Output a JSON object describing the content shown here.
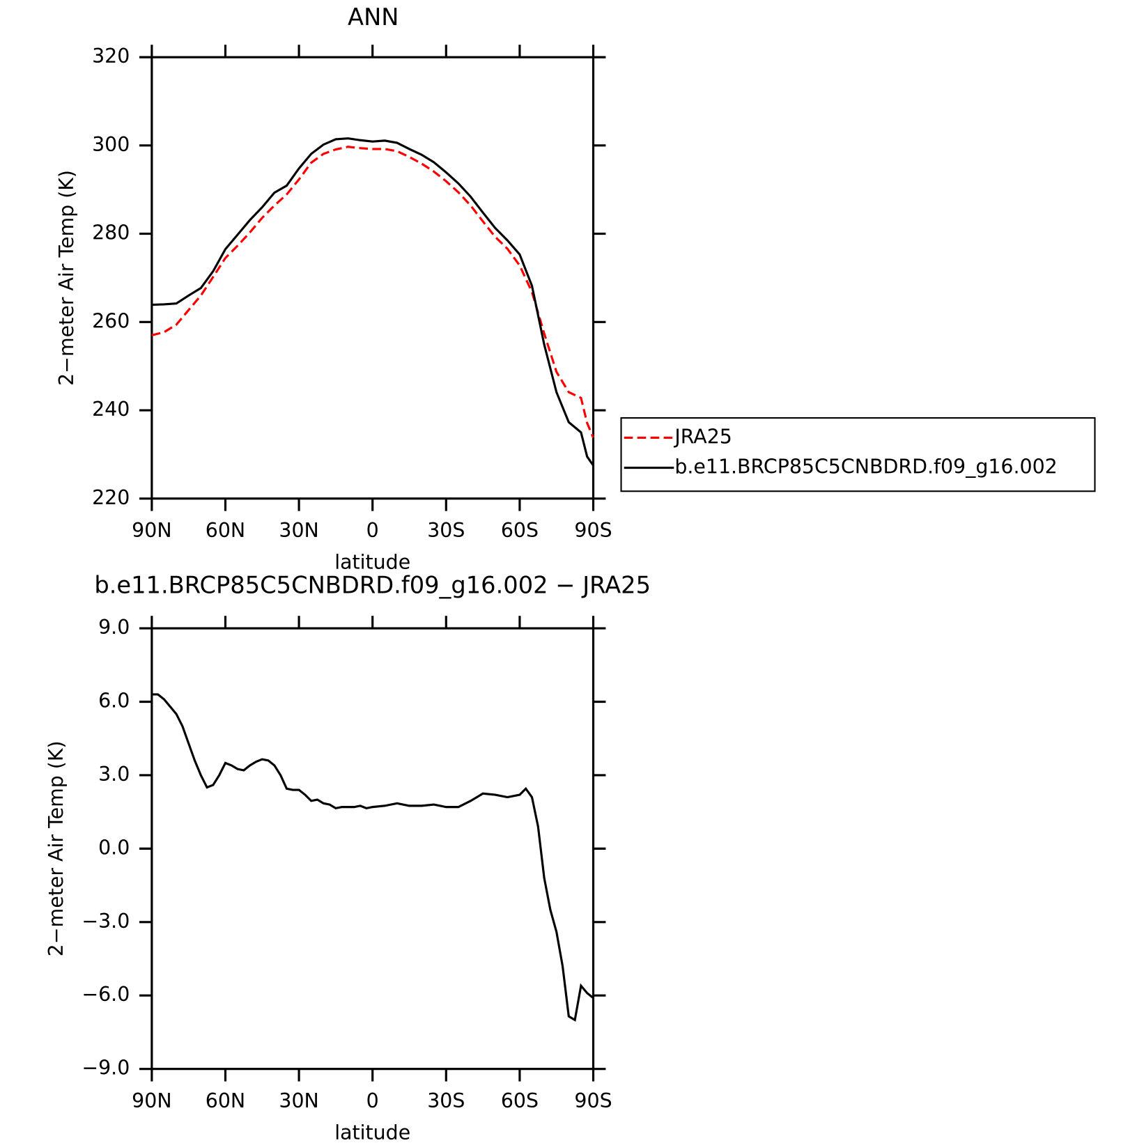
{
  "chart_data": [
    {
      "type": "line",
      "title": "ANN",
      "xlabel": "latitude",
      "ylabel": "2−meter Air Temp (K)",
      "x": [
        90,
        85,
        80,
        75,
        70,
        65,
        60,
        55,
        50,
        45,
        40,
        35,
        30,
        25,
        20,
        15,
        10,
        5,
        0,
        -5,
        -10,
        -15,
        -20,
        -25,
        -30,
        -35,
        -40,
        -45,
        -50,
        -55,
        -60,
        -65,
        -70,
        -75,
        -80,
        -85,
        -87.5,
        -90
      ],
      "series": [
        {
          "name": "JRA25",
          "color": "#ff0000",
          "dash": true,
          "values": [
            257.0,
            257.7,
            259.4,
            262.7,
            266.0,
            270.2,
            274.5,
            277.3,
            280.3,
            283.6,
            286.4,
            288.9,
            292.3,
            296.1,
            298.1,
            299.1,
            299.7,
            299.4,
            299.2,
            299.2,
            298.7,
            297.4,
            295.9,
            294.1,
            291.9,
            289.4,
            286.4,
            282.8,
            279.3,
            276.6,
            272.8,
            266.8,
            257.4,
            248.7,
            244.1,
            242.8,
            237.1,
            233.8
          ]
        },
        {
          "name": "b.e11.BRCP85C5CNBDRD.f09_g16.002",
          "color": "#000000",
          "dash": false,
          "values": [
            263.9,
            264.0,
            264.2,
            266.0,
            267.7,
            271.5,
            276.5,
            279.8,
            283.1,
            286.0,
            289.3,
            290.9,
            294.8,
            298.1,
            300.2,
            301.4,
            301.6,
            301.2,
            300.9,
            301.1,
            300.6,
            299.2,
            297.9,
            296.2,
            293.9,
            291.4,
            288.4,
            284.8,
            281.3,
            278.5,
            275.3,
            268.2,
            254.9,
            244.1,
            237.3,
            235.0,
            229.5,
            227.5
          ]
        }
      ],
      "xlim": [
        90,
        -90
      ],
      "xticks": [
        {
          "value": 90,
          "label": "90N"
        },
        {
          "value": 60,
          "label": "60N"
        },
        {
          "value": 30,
          "label": "30N"
        },
        0,
        {
          "value": -30,
          "label": "30S"
        },
        {
          "value": -60,
          "label": "60S"
        },
        {
          "value": -90,
          "label": "90S"
        }
      ],
      "ylim": [
        220,
        320
      ],
      "yticks": [
        220,
        240,
        260,
        280,
        300,
        320
      ],
      "legend": "right"
    },
    {
      "type": "line",
      "title": "b.e11.BRCP85C5CNBDRD.f09_g16.002 − JRA25",
      "xlabel": "latitude",
      "ylabel": "2−meter Air Temp (K)",
      "x": [
        90,
        87.5,
        85,
        80,
        77.5,
        75,
        72.5,
        70,
        67.5,
        65,
        62.5,
        60,
        57.5,
        55,
        52.5,
        50,
        47.5,
        45,
        42.5,
        40,
        37.5,
        35,
        32.5,
        30,
        27.5,
        25,
        22.5,
        20,
        17.5,
        15,
        12.5,
        10,
        7.5,
        5,
        2.5,
        0,
        -5,
        -10,
        -15,
        -20,
        -25,
        -30,
        -35,
        -40,
        -45,
        -50,
        -55,
        -60,
        -62.5,
        -65,
        -67.5,
        -70,
        -72.5,
        -75,
        -77.5,
        -80,
        -82.5,
        -85,
        -87.5,
        -90
      ],
      "values": [
        6.3,
        6.3,
        6.1,
        5.5,
        5.0,
        4.3,
        3.6,
        3.0,
        2.5,
        2.6,
        3.0,
        3.5,
        3.4,
        3.25,
        3.2,
        3.4,
        3.55,
        3.65,
        3.6,
        3.4,
        3.0,
        2.45,
        2.4,
        2.4,
        2.2,
        1.95,
        2.0,
        1.85,
        1.8,
        1.65,
        1.7,
        1.7,
        1.7,
        1.75,
        1.65,
        1.7,
        1.75,
        1.85,
        1.75,
        1.75,
        1.8,
        1.7,
        1.7,
        1.95,
        2.25,
        2.2,
        2.1,
        2.2,
        2.45,
        2.1,
        0.9,
        -1.2,
        -2.5,
        -3.4,
        -4.8,
        -6.85,
        -7.0,
        -5.6,
        -5.9,
        -6.1
      ],
      "color": "#000000",
      "xlim": [
        90,
        -90
      ],
      "xticks": [
        {
          "value": 90,
          "label": "90N"
        },
        {
          "value": 60,
          "label": "60N"
        },
        {
          "value": 30,
          "label": "30N"
        },
        0,
        {
          "value": -30,
          "label": "30S"
        },
        {
          "value": -60,
          "label": "60S"
        },
        {
          "value": -90,
          "label": "90S"
        }
      ],
      "ylim": [
        -9,
        9
      ],
      "yticks": [
        {
          "value": -9,
          "label": "−9.0"
        },
        {
          "value": -6,
          "label": "−6.0"
        },
        {
          "value": -3,
          "label": "−3.0"
        },
        {
          "value": 0,
          "label": "0.0"
        },
        {
          "value": 3,
          "label": "3.0"
        },
        {
          "value": 6,
          "label": "6.0"
        },
        {
          "value": 9,
          "label": "9.0"
        }
      ]
    }
  ]
}
